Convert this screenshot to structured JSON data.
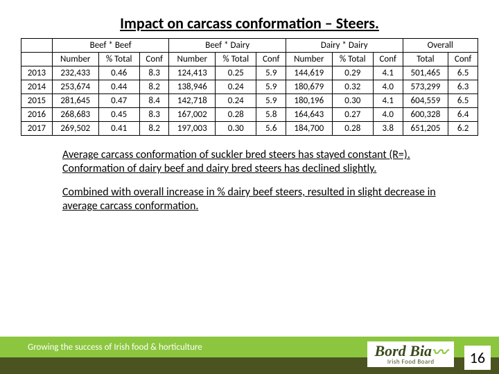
{
  "title": "Impact on carcass conformation – Steers.",
  "table": {
    "group_headers": [
      "",
      "Beef * Beef",
      "Beef * Dairy",
      "Dairy * Dairy",
      "Overall"
    ],
    "sub_headers": [
      "",
      "Number",
      "% Total",
      "Conf",
      "Number",
      "% Total",
      "Conf",
      "Number",
      "% Total",
      "Conf",
      "Total",
      "Conf"
    ],
    "rows": [
      [
        "2013",
        "232,433",
        "0.46",
        "8.3",
        "124,413",
        "0.25",
        "5.9",
        "144,619",
        "0.29",
        "4.1",
        "501,465",
        "6.5"
      ],
      [
        "2014",
        "253,674",
        "0.44",
        "8.2",
        "138,946",
        "0.24",
        "5.9",
        "180,679",
        "0.32",
        "4.0",
        "573,299",
        "6.3"
      ],
      [
        "2015",
        "281,645",
        "0.47",
        "8.4",
        "142,718",
        "0.24",
        "5.9",
        "180,196",
        "0.30",
        "4.1",
        "604,559",
        "6.5"
      ],
      [
        "2016",
        "268,683",
        "0.45",
        "8.3",
        "167,002",
        "0.28",
        "5.8",
        "164,643",
        "0.27",
        "4.0",
        "600,328",
        "6.4"
      ],
      [
        "2017",
        "269,502",
        "0.41",
        "8.2",
        "197,003",
        "0.30",
        "5.6",
        "184,700",
        "0.28",
        "3.8",
        "651,205",
        "6.2"
      ]
    ]
  },
  "paragraphs": [
    "Average carcass conformation of suckler bred steers has stayed constant (R=). Conformation of dairy beef and dairy bred steers has declined slightly.",
    "Combined with overall increase in % dairy beef steers, resulted in slight decrease in average carcass conformation."
  ],
  "footer": {
    "tagline": "Growing the success of Irish food & horticulture",
    "logo_main": "Bord Bia",
    "logo_sub": "Irish Food Board"
  },
  "page_number": "16",
  "colors": {
    "footer_light": "#8cc63f",
    "footer_dark": "#4b5320",
    "logo_text": "#3a4a1a"
  }
}
